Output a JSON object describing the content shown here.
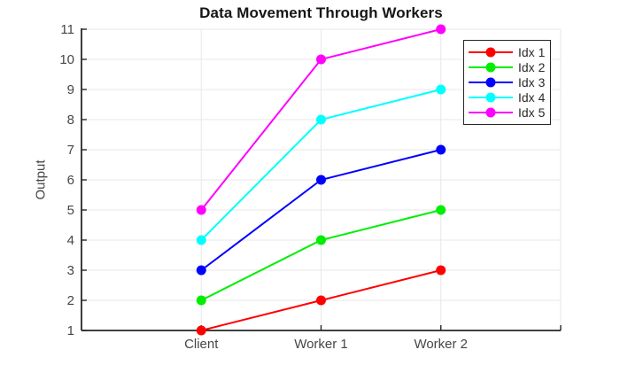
{
  "chart_data": {
    "type": "line",
    "title": "Data Movement Through Workers",
    "xlabel": "",
    "ylabel": "Output",
    "categories": [
      "Client",
      "Worker 1",
      "Worker 2"
    ],
    "x": [
      1,
      2,
      3
    ],
    "series": [
      {
        "name": "Idx 1",
        "color": "#ff0000",
        "values": [
          1,
          2,
          3
        ]
      },
      {
        "name": "Idx 2",
        "color": "#00ee00",
        "values": [
          2,
          4,
          5
        ]
      },
      {
        "name": "Idx 3",
        "color": "#0000ff",
        "values": [
          3,
          6,
          7
        ]
      },
      {
        "name": "Idx 4",
        "color": "#00ffff",
        "values": [
          4,
          8,
          9
        ]
      },
      {
        "name": "Idx 5",
        "color": "#ff00ff",
        "values": [
          5,
          10,
          11
        ]
      }
    ],
    "xlim": [
      0,
      4
    ],
    "ylim": [
      1,
      11
    ],
    "yticks": [
      1,
      2,
      3,
      4,
      5,
      6,
      7,
      8,
      9,
      10,
      11
    ],
    "xticks": [
      1,
      2,
      3,
      4
    ],
    "grid": true,
    "marker": "circle",
    "legend_position": "top-right",
    "legend_entries": [
      "Idx 1",
      "Idx 2",
      "Idx 3",
      "Idx 4",
      "Idx 5"
    ]
  },
  "style_colors": {
    "background": "#ffffff",
    "axis": "#262626",
    "grid": "#e7e7e7",
    "title_text": "#161616",
    "tick_text": "#464646"
  }
}
